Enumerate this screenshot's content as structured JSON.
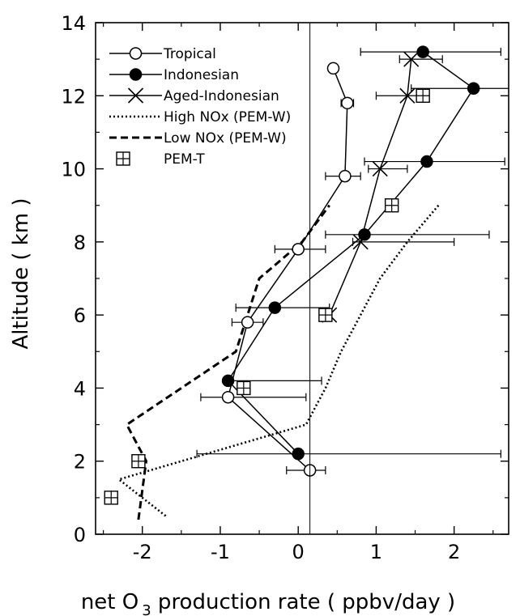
{
  "chart_data": {
    "type": "line",
    "xlabel": "net O 3 production rate ( ppbv/day )",
    "xlabel_main": "net O",
    "xlabel_sub": "3",
    "xlabel_rest": " production rate ( ppbv/day )",
    "ylabel": "Altitude ( km )",
    "xlim": [
      -2.6,
      2.7
    ],
    "ylim": [
      0,
      14
    ],
    "xticks": [
      -2,
      -1,
      0,
      1,
      2
    ],
    "yticks": [
      0,
      2,
      4,
      6,
      8,
      10,
      12,
      14
    ],
    "xtick_labels": [
      "-2",
      "-1",
      "0",
      "1",
      "2"
    ],
    "ytick_labels": [
      "0",
      "2",
      "4",
      "6",
      "8",
      "10",
      "12",
      "14"
    ],
    "reference_line_x": 0.15,
    "grid": false,
    "legend_position": "top-left",
    "series": [
      {
        "name": "Tropical",
        "marker": "open-circle",
        "line": "solid",
        "points": [
          {
            "x": 0.15,
            "y": 1.75,
            "xerr_low": 0.3,
            "xerr_high": 0.2
          },
          {
            "x": -0.9,
            "y": 3.75,
            "xerr_low": 0.35,
            "xerr_high": 1.0
          },
          {
            "x": -0.65,
            "y": 5.8,
            "xerr_low": 0.2,
            "xerr_high": 0.2
          },
          {
            "x": 0.0,
            "y": 7.8,
            "xerr_low": 0.3,
            "xerr_high": 0.35
          },
          {
            "x": 0.6,
            "y": 9.8,
            "xerr_low": 0.25,
            "xerr_high": 0.2
          },
          {
            "x": 0.63,
            "y": 11.8,
            "xerr_low": 0.08,
            "xerr_high": 0.08
          },
          {
            "x": 0.45,
            "y": 12.75
          }
        ]
      },
      {
        "name": "Indonesian",
        "marker": "filled-circle",
        "line": "solid",
        "points": [
          {
            "x": 0.0,
            "y": 2.2,
            "xerr_low": 1.3,
            "xerr_high": 2.6
          },
          {
            "x": -0.9,
            "y": 4.2,
            "xerr_low": 0.0,
            "xerr_high": 1.2
          },
          {
            "x": -0.3,
            "y": 6.2,
            "xerr_low": 0.5,
            "xerr_high": 0.7
          },
          {
            "x": 0.85,
            "y": 8.2,
            "xerr_low": 0.5,
            "xerr_high": 1.6
          },
          {
            "x": 1.65,
            "y": 10.2,
            "xerr_low": 0.8,
            "xerr_high": 1.0
          },
          {
            "x": 2.25,
            "y": 12.2,
            "xerr_low": 0.8,
            "xerr_high": 0.5
          },
          {
            "x": 1.6,
            "y": 13.2,
            "xerr_low": 0.8,
            "xerr_high": 1.0
          }
        ]
      },
      {
        "name": "Aged-Indonesian",
        "marker": "x",
        "line": "solid",
        "points": [
          {
            "x": 0.4,
            "y": 6.0
          },
          {
            "x": 0.8,
            "y": 8.0,
            "xerr_low": 0.1,
            "xerr_high": 1.2
          },
          {
            "x": 1.05,
            "y": 10.0,
            "xerr_low": 0.15,
            "xerr_high": 0.35
          },
          {
            "x": 1.4,
            "y": 12.0,
            "xerr_low": 0.4,
            "xerr_high": 0.2
          },
          {
            "x": 1.45,
            "y": 13.0,
            "xerr_low": 0.15,
            "xerr_high": 0.4
          }
        ]
      },
      {
        "name": "High NOx (PEM-W)",
        "marker": "none",
        "line": "dotted",
        "points": [
          {
            "x": -1.7,
            "y": 0.5
          },
          {
            "x": -2.0,
            "y": 1.0
          },
          {
            "x": -2.3,
            "y": 1.5
          },
          {
            "x": 0.1,
            "y": 3.0
          },
          {
            "x": 0.35,
            "y": 4.0
          },
          {
            "x": 0.55,
            "y": 5.0
          },
          {
            "x": 0.8,
            "y": 6.0
          },
          {
            "x": 1.05,
            "y": 7.0
          },
          {
            "x": 1.4,
            "y": 8.0
          },
          {
            "x": 1.8,
            "y": 9.0
          }
        ]
      },
      {
        "name": "Low NOx (PEM-W)",
        "marker": "none",
        "line": "dashed",
        "points": [
          {
            "x": -2.05,
            "y": 0.4
          },
          {
            "x": -1.95,
            "y": 2.0
          },
          {
            "x": -2.2,
            "y": 3.0
          },
          {
            "x": -0.8,
            "y": 5.0
          },
          {
            "x": -0.5,
            "y": 7.0
          },
          {
            "x": 0.05,
            "y": 8.0
          },
          {
            "x": 0.4,
            "y": 9.0
          }
        ]
      },
      {
        "name": "PEM-T",
        "marker": "boxed-plus",
        "line": "none",
        "points": [
          {
            "x": -2.4,
            "y": 1.0
          },
          {
            "x": -2.05,
            "y": 2.0
          },
          {
            "x": -0.7,
            "y": 4.0
          },
          {
            "x": 0.35,
            "y": 6.0
          },
          {
            "x": 1.2,
            "y": 9.0
          },
          {
            "x": 1.6,
            "y": 12.0
          }
        ]
      }
    ]
  }
}
